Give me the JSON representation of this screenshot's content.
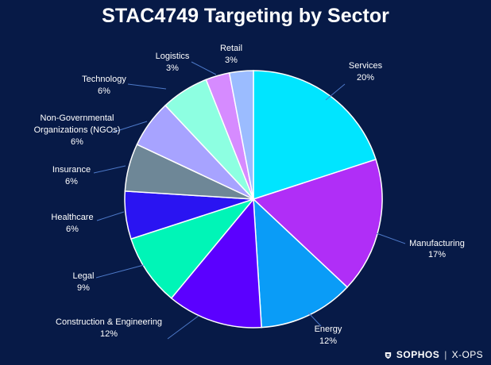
{
  "title": "STAC4749 Targeting by Sector",
  "colors": {
    "background": "#071a47",
    "text": "#ffffff",
    "leader": "#4d79c8"
  },
  "chart_data": {
    "type": "pie",
    "title": "STAC4749 Targeting by Sector",
    "slices": [
      {
        "label": "Services",
        "value": 20,
        "value_label": "20%",
        "color": "#00e5ff"
      },
      {
        "label": "Manufacturing",
        "value": 17,
        "value_label": "17%",
        "color": "#b02ef7"
      },
      {
        "label": "Energy",
        "value": 12,
        "value_label": "12%",
        "color": "#0a9cf7"
      },
      {
        "label": "Construction & Engineering",
        "value": 12,
        "value_label": "12%",
        "color": "#5b00ff"
      },
      {
        "label": "Legal",
        "value": 9,
        "value_label": "9%",
        "color": "#00f5b7"
      },
      {
        "label": "Healthcare",
        "value": 6,
        "value_label": "6%",
        "color": "#2a14f2"
      },
      {
        "label": "Insurance",
        "value": 6,
        "value_label": "6%",
        "color": "#6e8797"
      },
      {
        "label": "Non-Governmental Organizations (NGOs)",
        "value": 6,
        "value_label": "6%",
        "color": "#a7a3ff"
      },
      {
        "label": "Technology",
        "value": 6,
        "value_label": "6%",
        "color": "#8dffe1"
      },
      {
        "label": "Logistics",
        "value": 3,
        "value_label": "3%",
        "color": "#d68bff"
      },
      {
        "label": "Retail",
        "value": 3,
        "value_label": "3%",
        "color": "#9bbcff"
      }
    ]
  },
  "footer": {
    "brand": "SOPHOS",
    "separator": "|",
    "product": "X-OPS"
  }
}
